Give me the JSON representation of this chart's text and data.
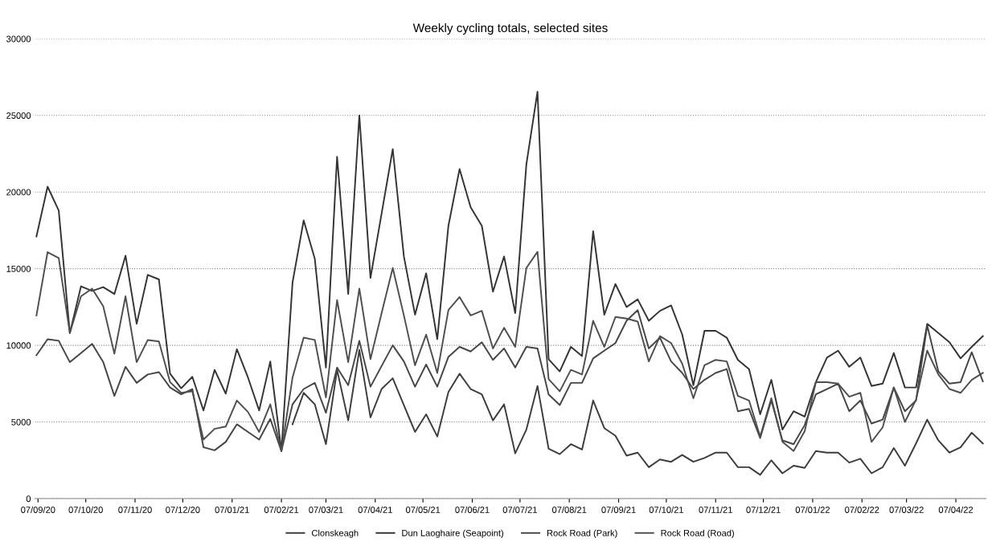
{
  "chart_data": {
    "type": "line",
    "title": "Weekly cycling totals, selected sites",
    "x": [
      "2020-09-06",
      "2020-09-13",
      "2020-09-20",
      "2020-09-27",
      "2020-10-04",
      "2020-10-11",
      "2020-10-18",
      "2020-10-25",
      "2020-11-01",
      "2020-11-08",
      "2020-11-15",
      "2020-11-22",
      "2020-11-29",
      "2020-12-06",
      "2020-12-13",
      "2020-12-20",
      "2020-12-27",
      "2021-01-03",
      "2021-01-10",
      "2021-01-17",
      "2021-01-24",
      "2021-01-31",
      "2021-02-07",
      "2021-02-14",
      "2021-02-21",
      "2021-02-28",
      "2021-03-07",
      "2021-03-14",
      "2021-03-21",
      "2021-03-28",
      "2021-04-04",
      "2021-04-11",
      "2021-04-18",
      "2021-04-25",
      "2021-05-02",
      "2021-05-09",
      "2021-05-16",
      "2021-05-23",
      "2021-05-30",
      "2021-06-06",
      "2021-06-13",
      "2021-06-20",
      "2021-06-27",
      "2021-07-04",
      "2021-07-11",
      "2021-07-18",
      "2021-07-25",
      "2021-08-01",
      "2021-08-08",
      "2021-08-15",
      "2021-08-22",
      "2021-08-29",
      "2021-09-05",
      "2021-09-12",
      "2021-09-19",
      "2021-09-26",
      "2021-10-03",
      "2021-10-10",
      "2021-10-17",
      "2021-10-24",
      "2021-10-31",
      "2021-11-07",
      "2021-11-14",
      "2021-11-21",
      "2021-11-28",
      "2021-12-05",
      "2021-12-12",
      "2021-12-19",
      "2021-12-26",
      "2022-01-02",
      "2022-01-09",
      "2022-01-16",
      "2022-01-23",
      "2022-01-30",
      "2022-02-06",
      "2022-02-13",
      "2022-02-20",
      "2022-02-27",
      "2022-03-06",
      "2022-03-13",
      "2022-03-20",
      "2022-03-27",
      "2022-04-03",
      "2022-04-10",
      "2022-04-17",
      "2022-04-24"
    ],
    "series": [
      {
        "name": "Clonskeagh",
        "color": "#3c3c3c",
        "values": [
          null,
          null,
          null,
          null,
          null,
          null,
          null,
          null,
          null,
          null,
          null,
          null,
          null,
          null,
          null,
          null,
          null,
          null,
          null,
          null,
          null,
          null,
          null,
          4850,
          6900,
          6150,
          3550,
          8400,
          5100,
          9700,
          5300,
          7150,
          7850,
          6100,
          4350,
          5500,
          4050,
          6950,
          8150,
          7150,
          6800,
          5100,
          6150,
          2950,
          4500,
          7350,
          3250,
          2900,
          3550,
          3200,
          6400,
          4600,
          4100,
          2800,
          3000,
          2050,
          2550,
          2400,
          2850,
          2400,
          2650,
          3000,
          3000,
          2050,
          2050,
          1550,
          2500,
          1650,
          2150,
          2000,
          3100,
          3000,
          3000,
          2350,
          2600,
          1650,
          2050,
          3300,
          2150,
          3600,
          5150,
          3800,
          3000,
          3350,
          4300,
          3600
        ]
      },
      {
        "name": "Dun Laoghaire (Seapoint)",
        "color": "#333333",
        "values": [
          17100,
          20350,
          18800,
          10800,
          13850,
          13550,
          13800,
          13350,
          15850,
          11400,
          14600,
          14300,
          8150,
          7200,
          7950,
          5750,
          8400,
          6850,
          9750,
          7900,
          5750,
          8950,
          3100,
          14100,
          18150,
          15650,
          8550,
          22300,
          13350,
          25000,
          14400,
          18600,
          22800,
          15800,
          12000,
          14700,
          10400,
          17800,
          21500,
          19000,
          17800,
          13500,
          15800,
          12100,
          21800,
          26550,
          9100,
          8300,
          9900,
          9300,
          17450,
          12000,
          14000,
          12500,
          13000,
          11600,
          12250,
          12600,
          10700,
          7400,
          10950,
          10950,
          10500,
          9050,
          8450,
          5500,
          7750,
          4500,
          5700,
          5350,
          7600,
          9200,
          9650,
          8600,
          9200,
          7350,
          7500,
          9500,
          7250,
          7250,
          11400,
          10800,
          10200,
          9150,
          9900,
          10600
        ]
      },
      {
        "name": "Rock Road (Park)",
        "color": "#454545",
        "values": [
          9350,
          10400,
          10300,
          8900,
          9500,
          10100,
          8900,
          6700,
          8600,
          7550,
          8100,
          8250,
          7250,
          6800,
          7150,
          3350,
          3150,
          3700,
          4850,
          4350,
          3850,
          5200,
          3100,
          6150,
          7150,
          7550,
          5600,
          8550,
          7400,
          10300,
          7300,
          8650,
          10000,
          8950,
          7300,
          8750,
          7300,
          9250,
          9900,
          9600,
          10200,
          9050,
          9800,
          8550,
          9900,
          9800,
          6800,
          6100,
          7550,
          7550,
          9150,
          9650,
          10150,
          11600,
          12300,
          9800,
          10500,
          8950,
          8200,
          7150,
          7750,
          8200,
          8450,
          5700,
          5850,
          3950,
          6400,
          3800,
          3550,
          4800,
          6800,
          7150,
          7500,
          5700,
          6400,
          4900,
          5150,
          7250,
          5700,
          6400,
          11300,
          8300,
          7500,
          7600,
          9550,
          7650
        ]
      },
      {
        "name": "Rock Road (Road)",
        "color": "#4e4e4e",
        "values": [
          11950,
          16080,
          15700,
          10800,
          13200,
          13700,
          12550,
          9450,
          13200,
          8900,
          10350,
          10250,
          7600,
          6900,
          7000,
          3850,
          4550,
          4700,
          6400,
          5650,
          4350,
          6150,
          3100,
          7900,
          10500,
          10350,
          6600,
          12950,
          8900,
          13700,
          9100,
          12100,
          15050,
          11950,
          8700,
          10700,
          8200,
          12300,
          13150,
          11950,
          12250,
          9800,
          11150,
          9900,
          15050,
          16100,
          7800,
          7000,
          8400,
          8100,
          11600,
          9900,
          11850,
          11750,
          11550,
          8950,
          10600,
          10150,
          8800,
          6550,
          8700,
          9050,
          8950,
          6700,
          6400,
          4050,
          6550,
          3700,
          3100,
          4400,
          7600,
          7600,
          7500,
          6650,
          6900,
          3700,
          4650,
          7250,
          5000,
          6450,
          9650,
          8100,
          7150,
          6900,
          7750,
          8200
        ]
      }
    ],
    "xlim": [
      "2020-09-05",
      "2022-04-26"
    ],
    "xticks": [
      {
        "value": "2020-09-07",
        "label": "07/09/20"
      },
      {
        "value": "2020-10-07",
        "label": "07/10/20"
      },
      {
        "value": "2020-11-07",
        "label": "07/11/20"
      },
      {
        "value": "2020-12-07",
        "label": "07/12/20"
      },
      {
        "value": "2021-01-07",
        "label": "07/01/21"
      },
      {
        "value": "2021-02-07",
        "label": "07/02/21"
      },
      {
        "value": "2021-03-07",
        "label": "07/03/21"
      },
      {
        "value": "2021-04-07",
        "label": "07/04/21"
      },
      {
        "value": "2021-05-07",
        "label": "07/05/21"
      },
      {
        "value": "2021-06-07",
        "label": "07/06/21"
      },
      {
        "value": "2021-07-07",
        "label": "07/07/21"
      },
      {
        "value": "2021-08-07",
        "label": "07/08/21"
      },
      {
        "value": "2021-09-07",
        "label": "07/09/21"
      },
      {
        "value": "2021-10-07",
        "label": "07/10/21"
      },
      {
        "value": "2021-11-07",
        "label": "07/11/21"
      },
      {
        "value": "2021-12-07",
        "label": "07/12/21"
      },
      {
        "value": "2022-01-07",
        "label": "07/01/22"
      },
      {
        "value": "2022-02-07",
        "label": "07/02/22"
      },
      {
        "value": "2022-03-07",
        "label": "07/03/22"
      },
      {
        "value": "2022-04-07",
        "label": "07/04/22"
      }
    ],
    "ylim": [
      0,
      30000
    ],
    "yticks": [
      0,
      5000,
      10000,
      15000,
      20000,
      25000,
      30000
    ],
    "grid": "y",
    "legend": "bottom",
    "marker": "none",
    "line_style": "solid"
  }
}
